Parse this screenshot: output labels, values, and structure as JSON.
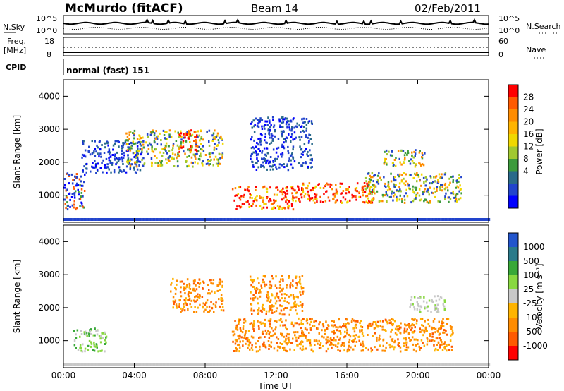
{
  "header": {
    "station": "McMurdo (fitACF)",
    "beam": "Beam 14",
    "date": "02/Feb/2011"
  },
  "top_panels": {
    "nsky_label": "N.Sky",
    "nsky_ticks": [
      "10^5",
      "10^0"
    ],
    "nsearch_label": "N.Search",
    "nsearch_ticks": [
      "10^5",
      "10^0"
    ],
    "freq_label": "Freq.",
    "freq_unit": "[MHz]",
    "freq_ticks": [
      "18",
      "8"
    ],
    "nave_label": "Nave",
    "nave_ticks": [
      "60",
      "0"
    ],
    "cpid_label": "CPID",
    "cpid_value": "normal (fast) 151"
  },
  "power_colorbar": {
    "title": "Power [dB]",
    "ticks": [
      "28",
      "24",
      "20",
      "16",
      "12",
      "8",
      "4"
    ],
    "colors": [
      "#ff0000",
      "#ff5a00",
      "#ff8c00",
      "#ffb400",
      "#f0d800",
      "#a0c830",
      "#3c9a3c",
      "#2a6a8a",
      "#2244cc",
      "#0000ff"
    ]
  },
  "velocity_colorbar": {
    "title": "Velocity [m s⁻¹]",
    "ticks": [
      "1000",
      "500",
      "100",
      "25",
      "-25",
      "-100",
      "-500",
      "-1000"
    ],
    "colors": [
      "#2255cc",
      "#2a7a8a",
      "#38a838",
      "#88d840",
      "#c8c8c8",
      "#ffb400",
      "#ff8c00",
      "#ff5a00",
      "#ff0000"
    ]
  },
  "chart_data": [
    {
      "type": "heatmap",
      "title": "Power",
      "ylabel": "Slant Range [km]",
      "xlabel": "Time UT",
      "ylim": [
        180,
        4500
      ],
      "xlim": [
        0,
        24
      ],
      "x_ticks": [
        "00:00",
        "04:00",
        "08:00",
        "12:00",
        "16:00",
        "20:00",
        "00:00"
      ],
      "y_ticks": [
        "1000",
        "2000",
        "3000",
        "4000"
      ],
      "echo_regions": [
        {
          "t0": 0.0,
          "t1": 1.2,
          "r0": 600,
          "r1": 1700,
          "level": "mixed-low"
        },
        {
          "t0": 1.0,
          "t1": 4.5,
          "r0": 1700,
          "r1": 2700,
          "level": "low"
        },
        {
          "t0": 3.5,
          "t1": 9.0,
          "r0": 1900,
          "r1": 3000,
          "level": "mid"
        },
        {
          "t0": 6.5,
          "t1": 7.5,
          "r0": 2300,
          "r1": 3000,
          "level": "high"
        },
        {
          "t0": 9.5,
          "t1": 13.0,
          "r0": 600,
          "r1": 1300,
          "level": "high"
        },
        {
          "t0": 13.0,
          "t1": 17.5,
          "r0": 800,
          "r1": 1400,
          "level": "high"
        },
        {
          "t0": 10.5,
          "t1": 14.0,
          "r0": 1800,
          "r1": 3400,
          "level": "low"
        },
        {
          "t0": 18.0,
          "t1": 20.5,
          "r0": 1900,
          "r1": 2400,
          "level": "mid"
        },
        {
          "t0": 17.0,
          "t1": 22.5,
          "r0": 800,
          "r1": 1700,
          "level": "mid"
        }
      ]
    },
    {
      "type": "heatmap",
      "title": "Velocity",
      "ylabel": "Slant Range [km]",
      "xlabel": "Time UT",
      "ylim": [
        180,
        4500
      ],
      "xlim": [
        0,
        24
      ],
      "x_ticks": [
        "00:00",
        "04:00",
        "08:00",
        "12:00",
        "16:00",
        "20:00",
        "00:00"
      ],
      "y_ticks": [
        "1000",
        "2000",
        "3000",
        "4000"
      ],
      "echo_regions": [
        {
          "t0": 0.5,
          "t1": 2.5,
          "r0": 700,
          "r1": 1400,
          "vel": "toward-100"
        },
        {
          "t0": 6.0,
          "t1": 9.0,
          "r0": 1900,
          "r1": 2900,
          "vel": "away-500"
        },
        {
          "t0": 9.5,
          "t1": 22.0,
          "r0": 700,
          "r1": 1700,
          "vel": "away-500"
        },
        {
          "t0": 10.5,
          "t1": 13.5,
          "r0": 1800,
          "r1": 3000,
          "vel": "away-500"
        },
        {
          "t0": 19.5,
          "t1": 21.5,
          "r0": 1900,
          "r1": 2400,
          "vel": "near-zero"
        }
      ]
    }
  ]
}
